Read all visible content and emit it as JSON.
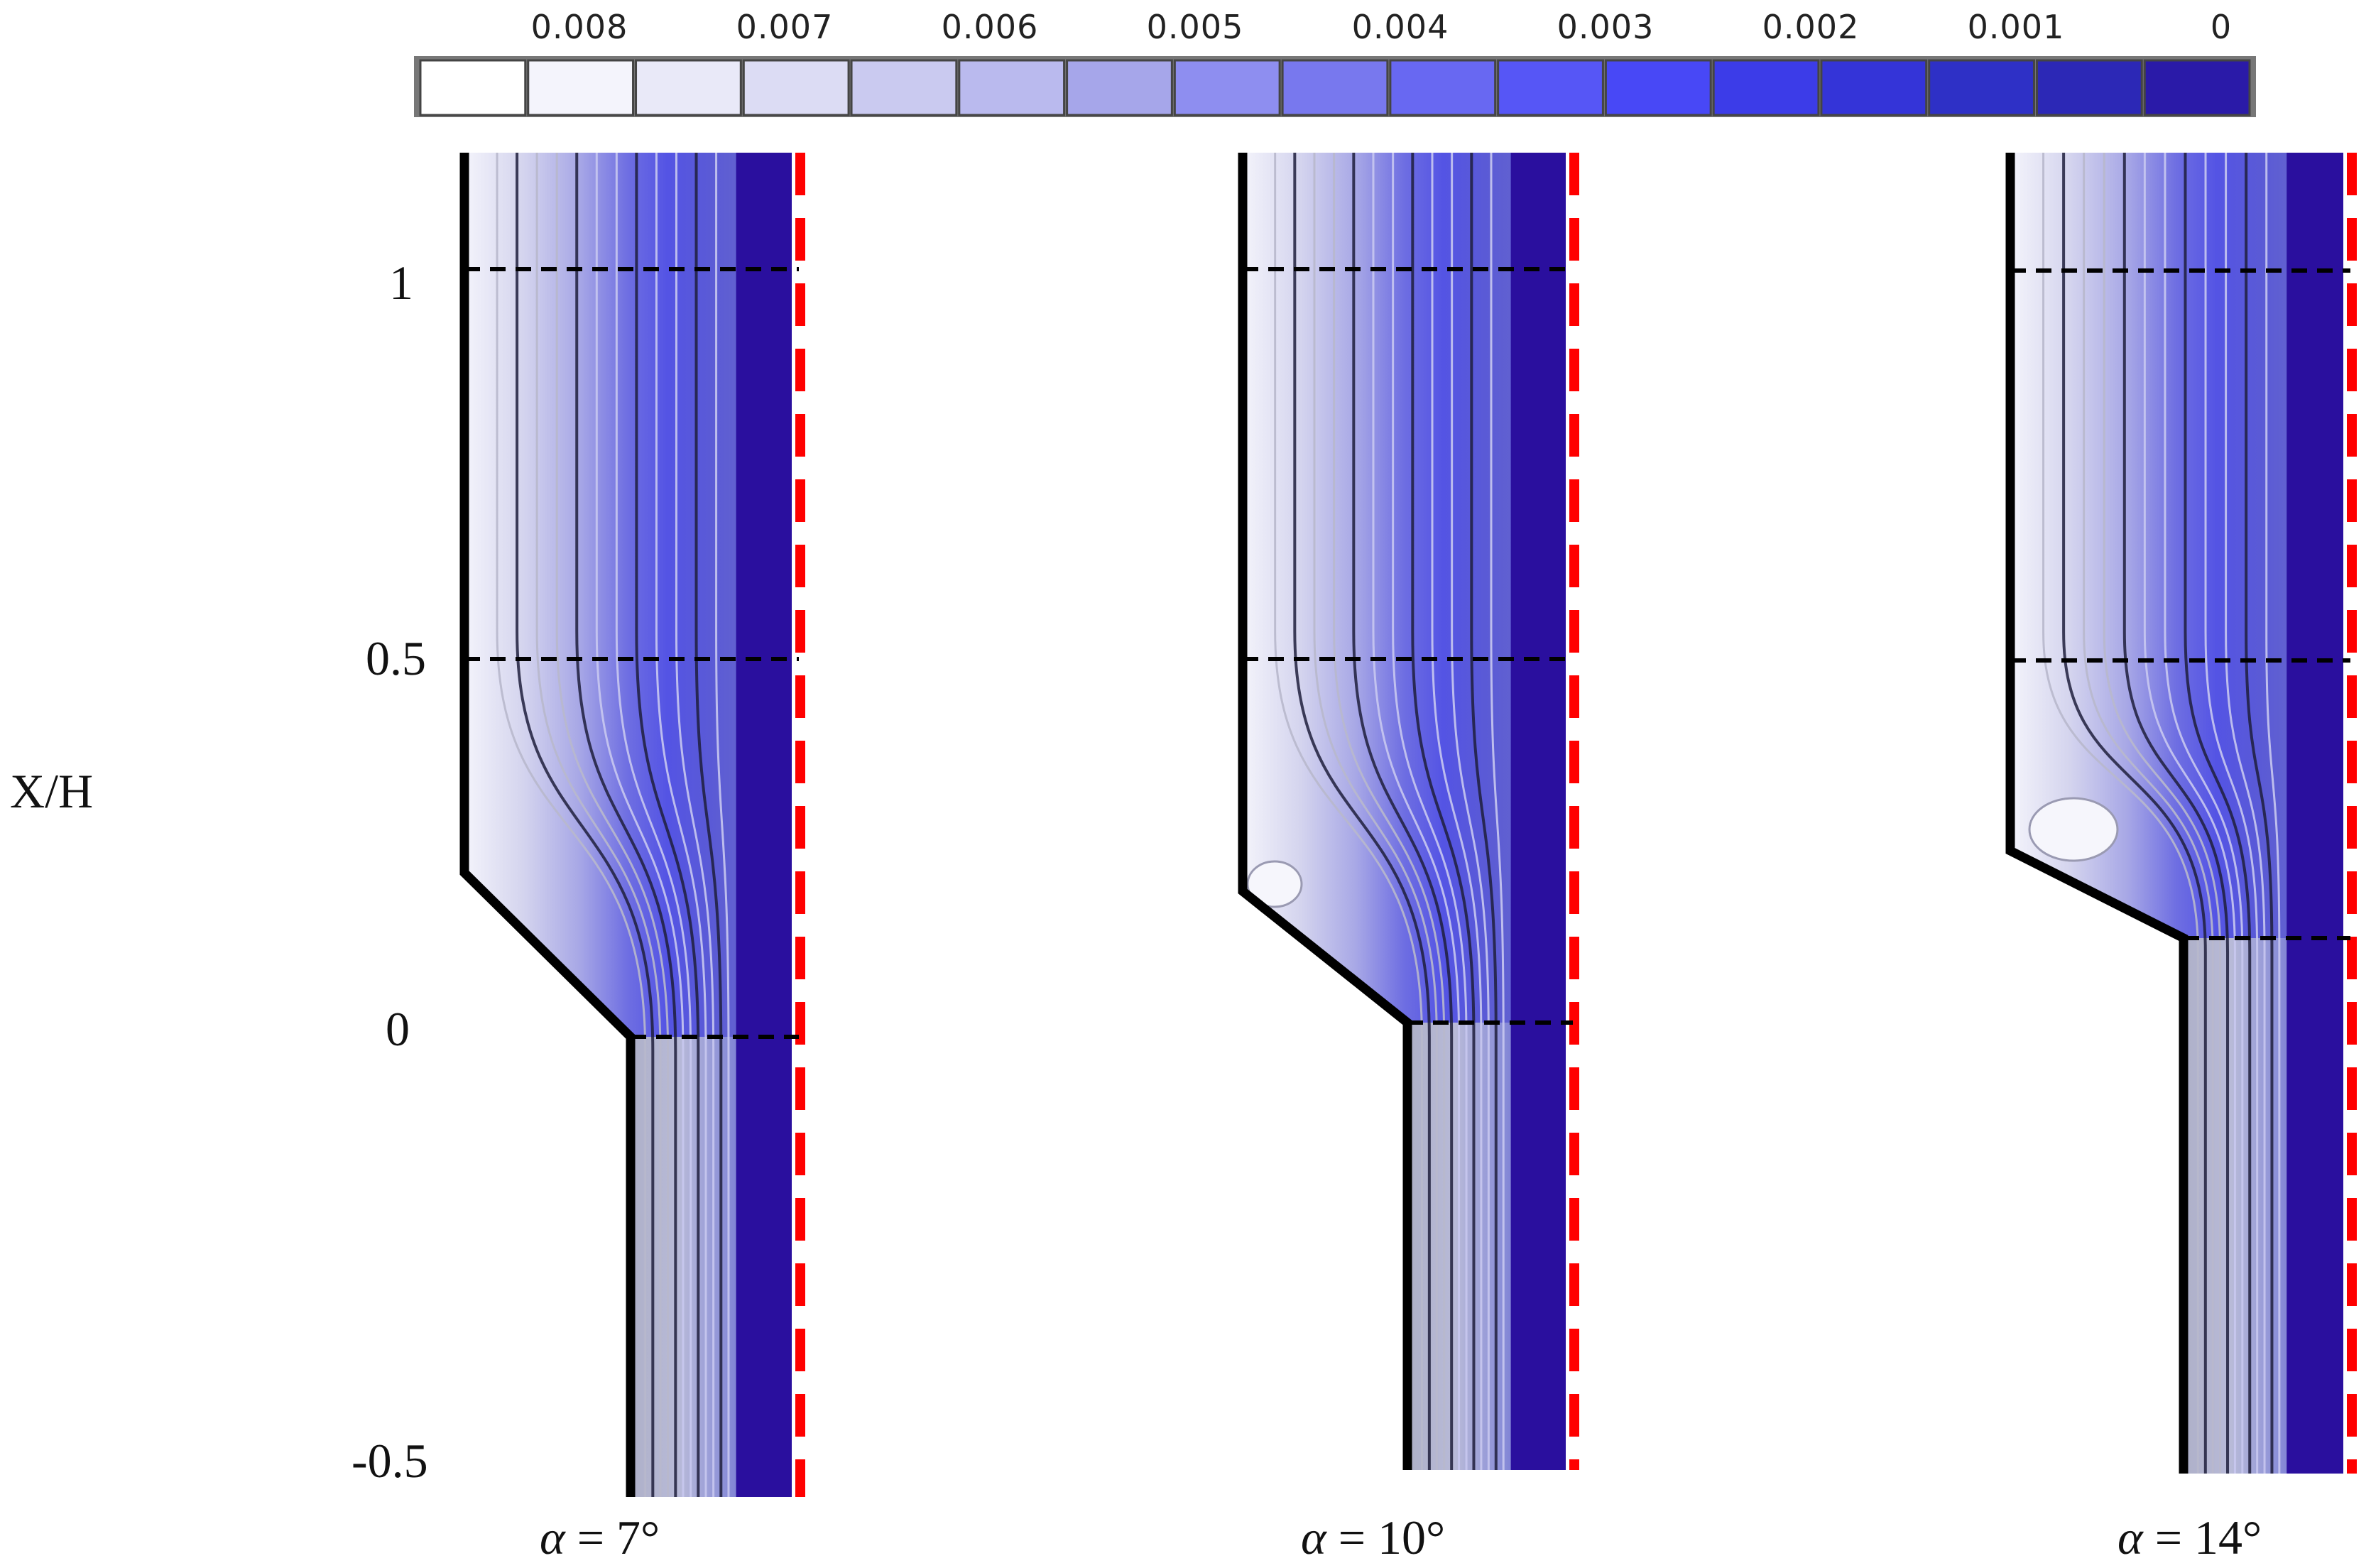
{
  "colorbar": {
    "labels": [
      "0.008",
      "0.007",
      "0.006",
      "0.005",
      "0.004",
      "0.003",
      "0.002",
      "0.001",
      "0"
    ],
    "colors": [
      "#ffffff",
      "#f4f4fc",
      "#e9e9f8",
      "#dcdcf4",
      "#cacaf0",
      "#babaee",
      "#a6a6ea",
      "#8e8ef0",
      "#7878ee",
      "#6868f2",
      "#5656f6",
      "#4848f6",
      "#3c3ce8",
      "#3434d8",
      "#2e30c6",
      "#2c28b6",
      "#2a1aa8"
    ]
  },
  "y_axis": {
    "label": "X/H",
    "ticks": [
      "1",
      "0.5",
      "0",
      "-0.5"
    ]
  },
  "panels": [
    {
      "alpha_symbol": "α",
      "alpha_value": " = 7°",
      "recirculation": false
    },
    {
      "alpha_symbol": "α",
      "alpha_value": " = 10°",
      "recirculation": true
    },
    {
      "alpha_symbol": "α",
      "alpha_value": " = 14°",
      "recirculation": true
    }
  ],
  "colors": {
    "wall": "#000000",
    "symmetry_line": "#ff0000",
    "reference_line": "#000000",
    "core_fill": "#2a0f9e"
  }
}
